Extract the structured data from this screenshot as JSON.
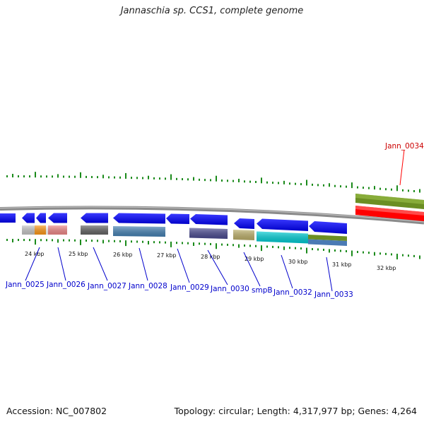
{
  "title": "Jannaschia sp. CCS1, complete genome",
  "footer": {
    "accession": "Accession: NC_007802",
    "stats": "Topology: circular; Length: 4,317,977 bp; Genes: 4,264"
  },
  "colors": {
    "forward_gene": "#0000dd",
    "gene_label": "#0000cc",
    "highlight": "#ff0000",
    "tick": "#1a8a1a",
    "backbone": "#808080"
  },
  "kbp_labels": [
    "24 kbp",
    "25 kbp",
    "26 kbp",
    "27 kbp",
    "28 kbp",
    "29 kbp",
    "30 kbp",
    "31 kbp",
    "32 kbp"
  ],
  "gene_labels": [
    "Jann_0025",
    "Jann_0026",
    "Jann_0027",
    "Jann_0028",
    "Jann_0029",
    "Jann_0030",
    "smpB",
    "Jann_0032",
    "Jann_0033"
  ],
  "highlight_label": "Jann_0034"
}
